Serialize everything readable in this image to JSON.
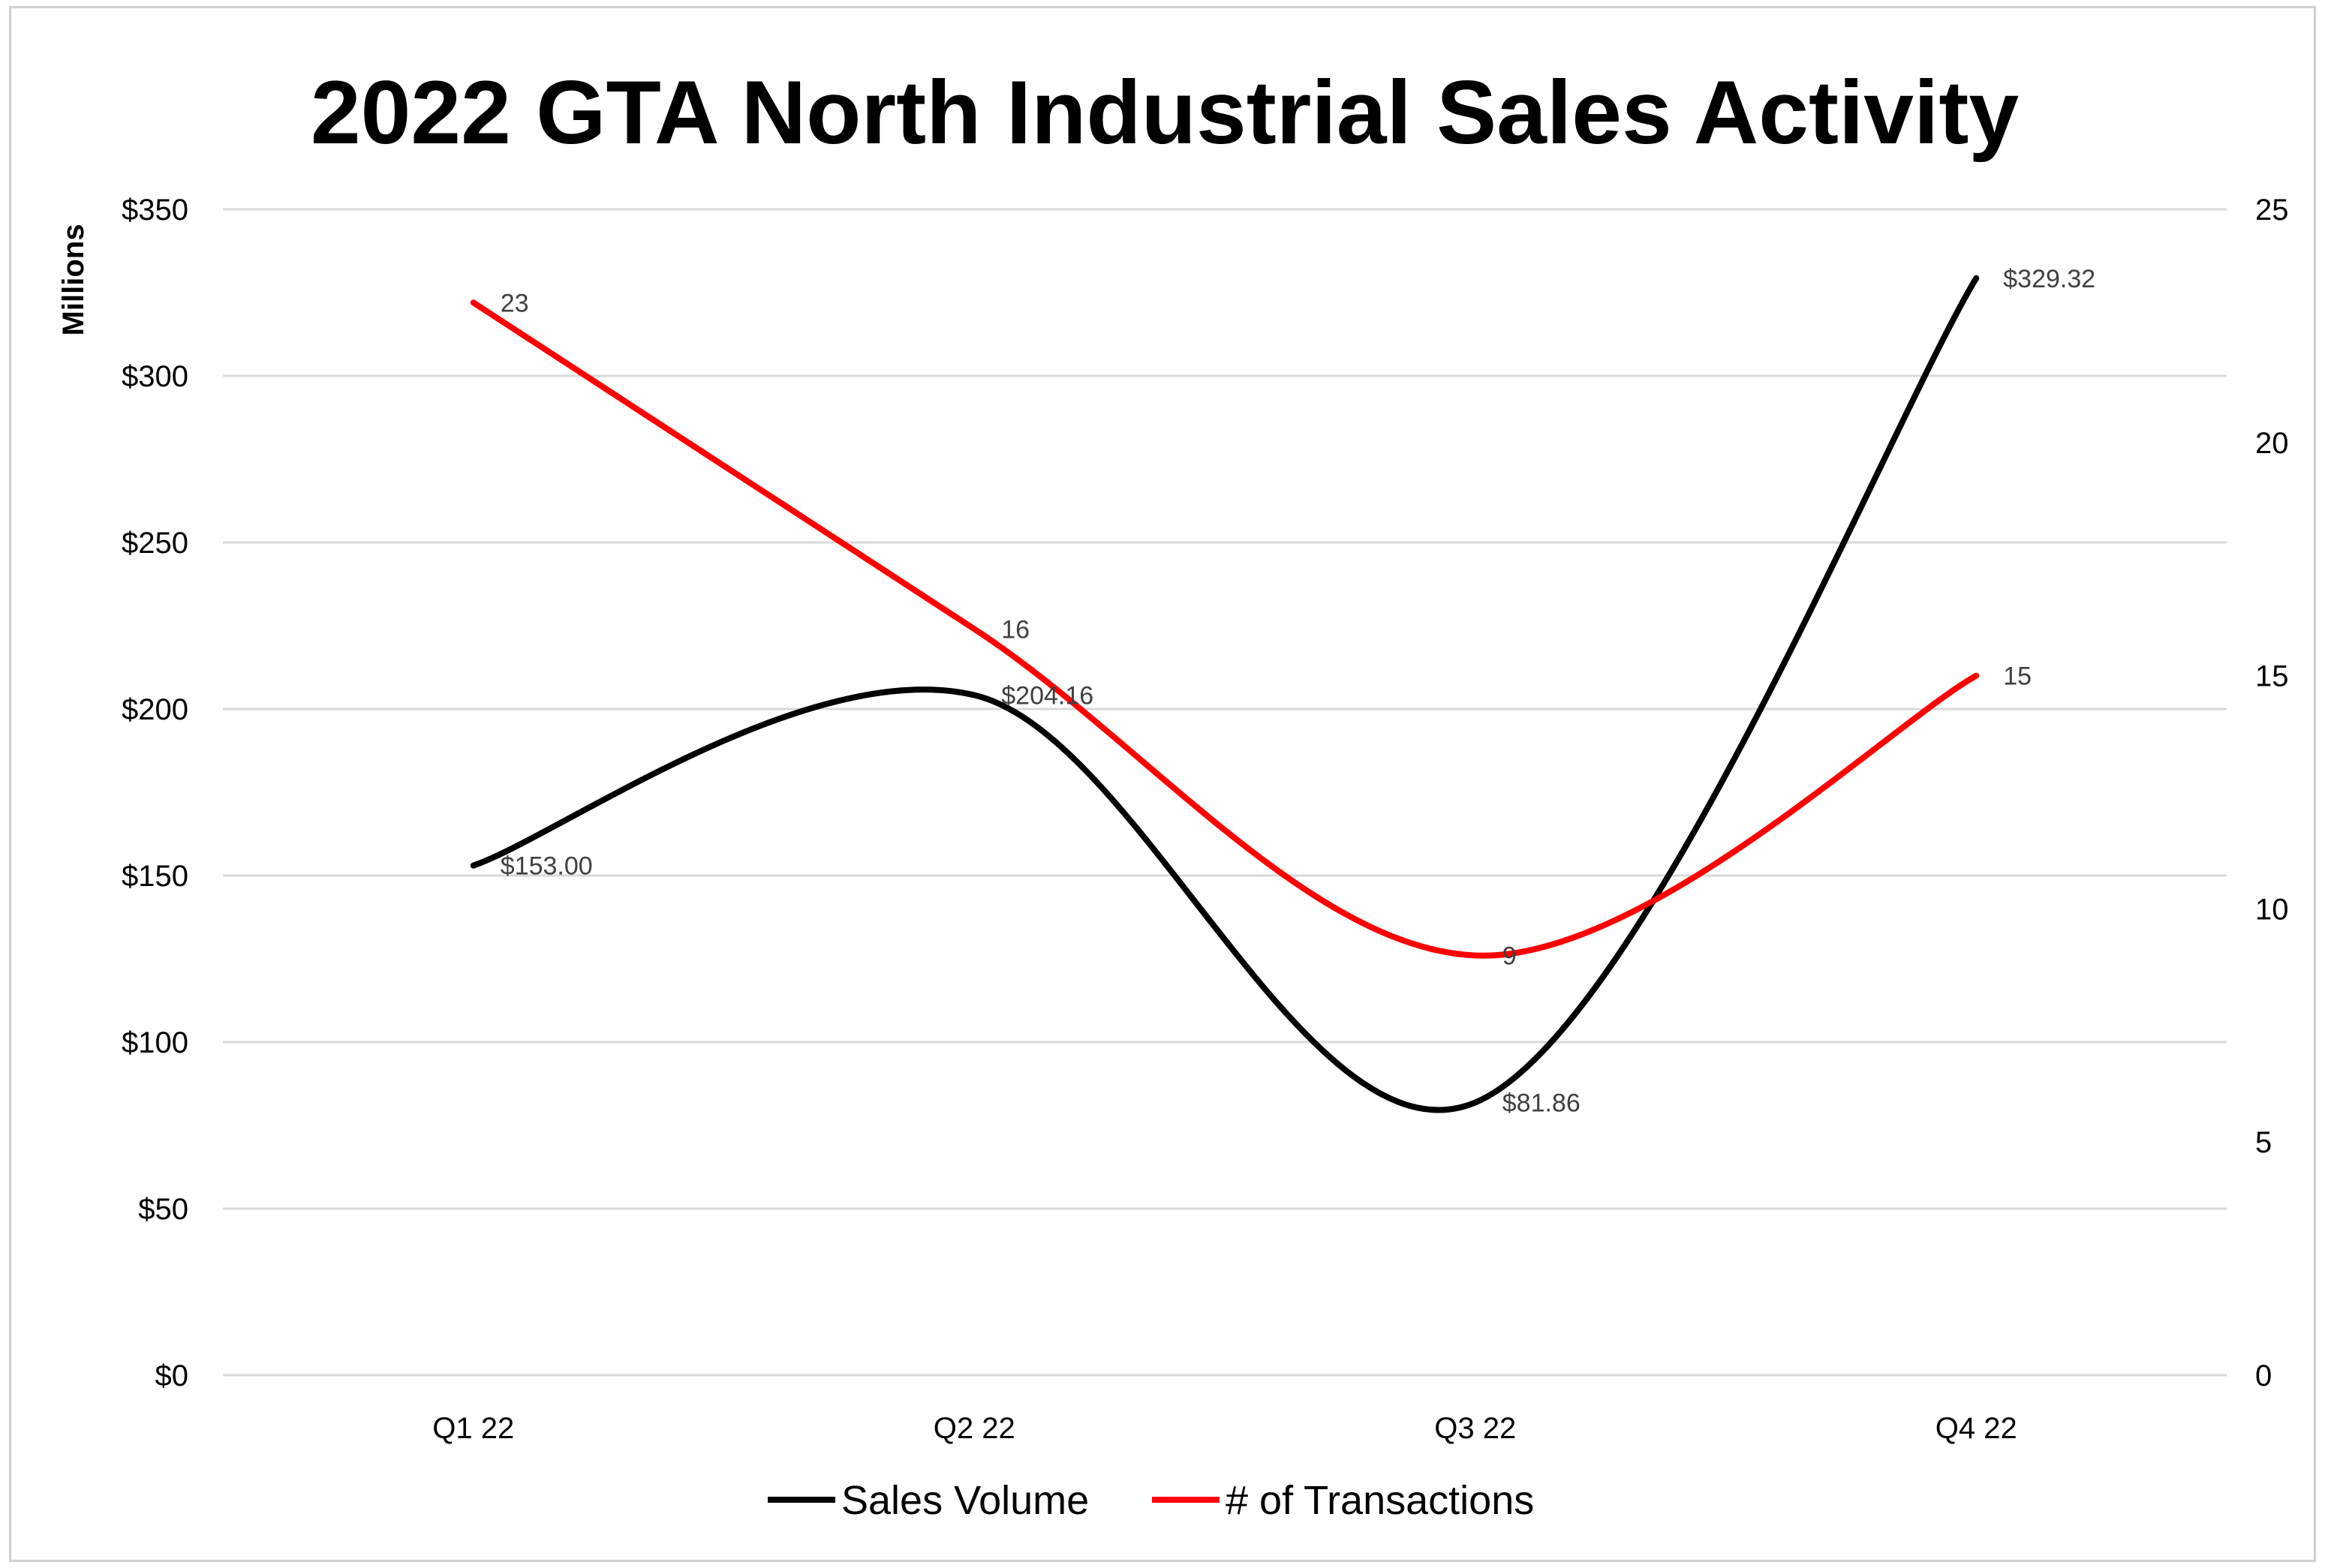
{
  "chart_data": {
    "type": "line",
    "title": "2022 GTA North Industrial Sales Activity",
    "categories": [
      "Q1 22",
      "Q2 22",
      "Q3 22",
      "Q4 22"
    ],
    "y_left": {
      "label": "Millions",
      "range": [
        0,
        350
      ],
      "ticks": [
        0,
        50,
        100,
        150,
        200,
        250,
        300,
        350
      ],
      "tick_labels": [
        "$0",
        "$50",
        "$100",
        "$150",
        "$200",
        "$250",
        "$300",
        "$350"
      ]
    },
    "y_right": {
      "range": [
        0,
        25
      ],
      "ticks": [
        0,
        5,
        10,
        15,
        20,
        25
      ],
      "tick_labels": [
        "0",
        "5",
        "10",
        "15",
        "20",
        "25"
      ]
    },
    "grid": true,
    "smooth": true,
    "legend_position": "bottom",
    "series": [
      {
        "name": "Sales Volume",
        "axis": "left",
        "color": "#000000",
        "values": [
          153.0,
          204.16,
          81.86,
          329.32
        ],
        "labels": [
          "$153.00",
          "$204.16",
          "$81.86",
          "$329.32"
        ]
      },
      {
        "name": "# of Transactions",
        "axis": "right",
        "color": "#ff0000",
        "values": [
          23,
          16,
          9,
          15
        ],
        "labels": [
          "23",
          "16",
          "9",
          "15"
        ]
      }
    ]
  }
}
